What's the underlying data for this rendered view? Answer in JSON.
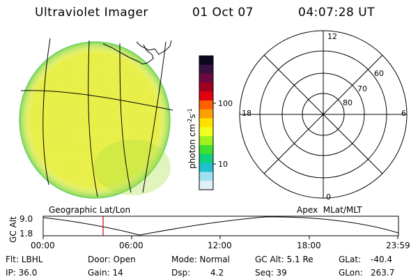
{
  "header": {
    "title": "Ultraviolet Imager",
    "date": "01 Oct 07",
    "time": "04:07:28 UT"
  },
  "colorbar": {
    "unit_label": "photon cm",
    "unit_exp1": "-2",
    "unit_s": "s",
    "unit_exp2": "-1",
    "ticks": [
      "100",
      "10"
    ],
    "colors": [
      "#0b0820",
      "#3a1040",
      "#6a0a40",
      "#a00020",
      "#e00010",
      "#ff6000",
      "#ffa000",
      "#ffe000",
      "#f0ff20",
      "#a0f020",
      "#40e030",
      "#10d080",
      "#20c0d0",
      "#a0e0f0",
      "#e0f0f8"
    ]
  },
  "left_panel": {
    "name": "Geographic Lat/Lon",
    "disk_color": "#e8f048"
  },
  "right_panel": {
    "name": "Apex  MLat/MLT",
    "mlt_labels": {
      "top": "12",
      "left": "18",
      "right": "6",
      "bottom": "0"
    },
    "lat_labels": [
      "60",
      "70",
      "80"
    ]
  },
  "altitude_plot": {
    "ylabel": "GC Alt",
    "yticks": [
      "9.0",
      "1.8"
    ],
    "xticks": [
      "00:00",
      "06:00",
      "12:00",
      "18:00",
      "23:59"
    ],
    "marker_color": "#d00000",
    "marker_time": "04:07:28"
  },
  "status": {
    "flt": "Flt: LBHL",
    "ip": "IP: 36.0",
    "door": "Door: Open",
    "gain": "Gain: 14",
    "mode": "Mode: Normal",
    "dsp_label": "Dsp:",
    "dsp_value": "4.2",
    "gc_alt": "GC Alt: 5.1 Re",
    "seq": "Seq: 39",
    "glat_label": "GLat:",
    "glat_value": "-40.4",
    "glon_label": "GLon:",
    "glon_value": "263.7"
  }
}
